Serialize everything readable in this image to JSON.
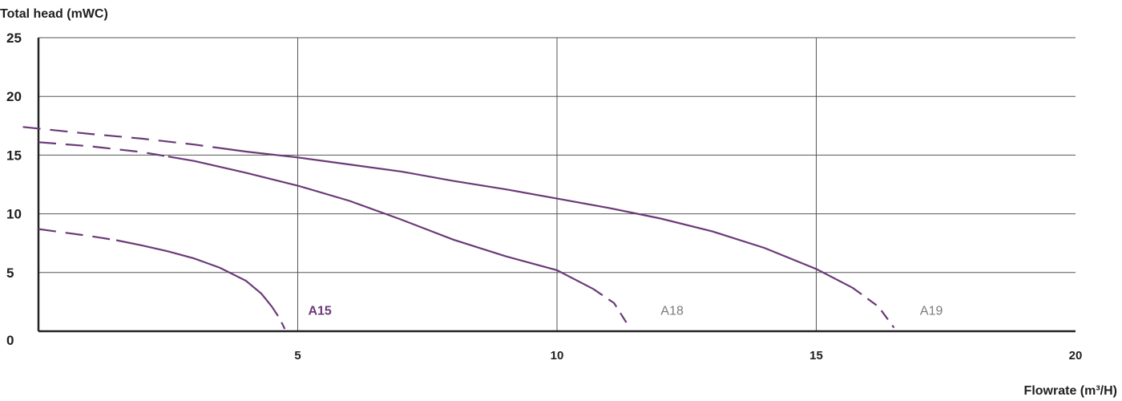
{
  "chart_data": {
    "type": "line",
    "title": "",
    "ylabel": "Total head (mWC)",
    "xlabel": "Flowrate (m³/H)",
    "xlim": [
      0,
      20
    ],
    "ylim": [
      0,
      25
    ],
    "x_ticks": [
      "5",
      "10",
      "15",
      "20"
    ],
    "y_ticks": [
      "0",
      "5",
      "10",
      "15",
      "20",
      "25"
    ],
    "grid": true,
    "colors": {
      "curve": "#6b3a78",
      "grid": "#555555",
      "label_muted": "#7a7a7a"
    },
    "series": [
      {
        "name": "A15",
        "label_bold": true,
        "points": [
          [
            0,
            8.7
          ],
          [
            0.5,
            8.4
          ],
          [
            1,
            8.1
          ],
          [
            1.5,
            7.75
          ],
          [
            2,
            7.3
          ],
          [
            2.5,
            6.8
          ],
          [
            3,
            6.2
          ],
          [
            3.5,
            5.4
          ],
          [
            4,
            4.3
          ],
          [
            4.3,
            3.2
          ],
          [
            4.5,
            2.1
          ],
          [
            4.65,
            1.1
          ],
          [
            4.75,
            0.2
          ]
        ],
        "dash_ranges": [
          [
            0,
            1.5
          ],
          [
            4.5,
            4.75
          ]
        ],
        "label_x": 5.2,
        "label_y": 1.4
      },
      {
        "name": "A18",
        "label_bold": false,
        "points": [
          [
            0,
            16.1
          ],
          [
            1,
            15.75
          ],
          [
            2,
            15.25
          ],
          [
            3,
            14.5
          ],
          [
            4,
            13.5
          ],
          [
            5,
            12.4
          ],
          [
            6,
            11.1
          ],
          [
            7,
            9.5
          ],
          [
            8,
            7.8
          ],
          [
            9,
            6.4
          ],
          [
            10,
            5.2
          ],
          [
            10.7,
            3.6
          ],
          [
            11.1,
            2.4
          ],
          [
            11.4,
            0.3
          ]
        ],
        "dash_ranges": [
          [
            0,
            2.5
          ],
          [
            10.7,
            11.4
          ]
        ],
        "label_x": 12.0,
        "label_y": 1.4
      },
      {
        "name": "A19",
        "label_bold": false,
        "points": [
          [
            -0.3,
            17.4
          ],
          [
            1,
            16.8
          ],
          [
            2,
            16.4
          ],
          [
            3,
            15.9
          ],
          [
            4,
            15.3
          ],
          [
            5,
            14.8
          ],
          [
            6,
            14.2
          ],
          [
            7,
            13.6
          ],
          [
            8,
            12.8
          ],
          [
            9,
            12.1
          ],
          [
            10,
            11.3
          ],
          [
            11,
            10.5
          ],
          [
            12,
            9.6
          ],
          [
            13,
            8.5
          ],
          [
            14,
            7.1
          ],
          [
            15,
            5.3
          ],
          [
            15.7,
            3.7
          ],
          [
            16.2,
            2.1
          ],
          [
            16.5,
            0.3
          ]
        ],
        "dash_ranges": [
          [
            -0.3,
            3.5
          ],
          [
            15.7,
            16.5
          ]
        ],
        "label_x": 17.0,
        "label_y": 1.4
      }
    ]
  }
}
